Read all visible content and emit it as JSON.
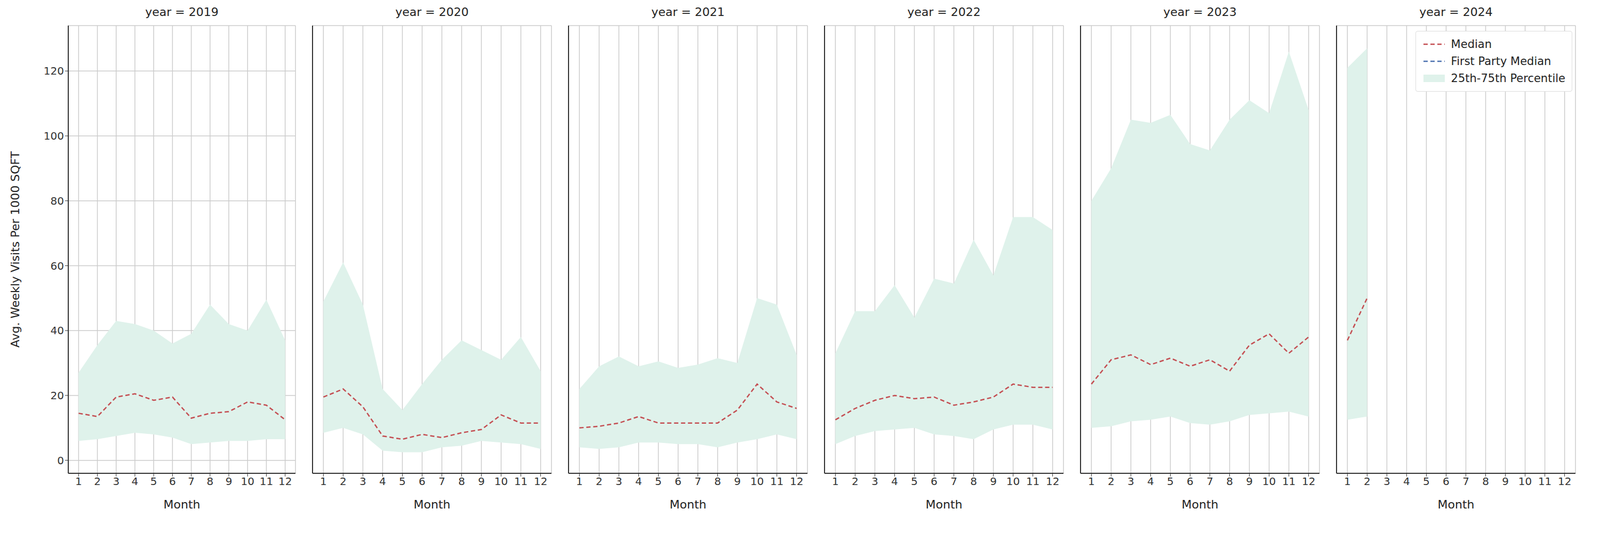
{
  "chart_data": [
    {
      "type": "line",
      "title": "year = 2019",
      "x_label": "Month",
      "y_label": "Avg. Weekly Visits Per 1000 SQFT",
      "x": [
        1,
        2,
        3,
        4,
        5,
        6,
        7,
        8,
        9,
        10,
        11,
        12
      ],
      "xlim": [
        0.45,
        12.55
      ],
      "xticks": [
        1,
        2,
        3,
        4,
        5,
        6,
        7,
        8,
        9,
        10,
        11,
        12
      ],
      "ylim": [
        -4,
        134
      ],
      "yticks": [
        0,
        20,
        40,
        60,
        80,
        100,
        120
      ],
      "grid": true,
      "series": [
        {
          "name": "Median",
          "type": "line",
          "color": "#c44e52",
          "line_style": "dashed",
          "values": [
            14.5,
            13.5,
            19.5,
            20.5,
            18.5,
            19.5,
            13,
            14.5,
            15,
            18,
            17,
            12.5
          ]
        },
        {
          "name": "First Party Median",
          "type": "line",
          "color": "#4c72b0",
          "line_style": "dashed",
          "values": [
            null,
            null,
            null,
            null,
            null,
            null,
            null,
            null,
            null,
            null,
            null,
            null
          ]
        },
        {
          "name": "25th-75th Percentile",
          "type": "band",
          "color": "#dff2eb",
          "lower": [
            6,
            6.5,
            7.5,
            8.5,
            8,
            7,
            5,
            5.5,
            6,
            6,
            6.5,
            6.5
          ],
          "upper": [
            27,
            35.5,
            43,
            42,
            40,
            36,
            39,
            48,
            42,
            40,
            49.5,
            37
          ]
        }
      ]
    },
    {
      "type": "line",
      "title": "year = 2020",
      "x_label": "Month",
      "tick_labels": "x",
      "x": [
        1,
        2,
        3,
        4,
        5,
        6,
        7,
        8,
        9,
        10,
        11,
        12
      ],
      "xlim": [
        0.45,
        12.55
      ],
      "xticks": [
        1,
        2,
        3,
        4,
        5,
        6,
        7,
        8,
        9,
        10,
        11,
        12
      ],
      "ylim": [
        -4,
        134
      ],
      "yticks": [
        0,
        20,
        40,
        60,
        80,
        100,
        120
      ],
      "grid": true,
      "series": [
        {
          "name": "Median",
          "type": "line",
          "color": "#c44e52",
          "line_style": "dashed",
          "values": [
            19.5,
            22,
            16.5,
            7.5,
            6.5,
            8,
            7,
            8.5,
            9.5,
            14,
            11.5,
            11.5
          ]
        },
        {
          "name": "First Party Median",
          "type": "line",
          "color": "#4c72b0",
          "line_style": "dashed",
          "values": [
            null,
            null,
            null,
            null,
            null,
            null,
            null,
            null,
            null,
            null,
            null,
            null
          ]
        },
        {
          "name": "25th-75th Percentile",
          "type": "band",
          "color": "#dff2eb",
          "lower": [
            8.5,
            10,
            8,
            3,
            2.5,
            2.5,
            4,
            4.5,
            6,
            5.5,
            5,
            3.5
          ],
          "upper": [
            49,
            61,
            48,
            22,
            15.5,
            23.5,
            31,
            37,
            34,
            31,
            38,
            27.5
          ]
        }
      ]
    },
    {
      "type": "line",
      "title": "year = 2021",
      "x_label": "Month",
      "tick_labels": "x",
      "x": [
        1,
        2,
        3,
        4,
        5,
        6,
        7,
        8,
        9,
        10,
        11,
        12
      ],
      "xlim": [
        0.45,
        12.55
      ],
      "xticks": [
        1,
        2,
        3,
        4,
        5,
        6,
        7,
        8,
        9,
        10,
        11,
        12
      ],
      "ylim": [
        -4,
        134
      ],
      "yticks": [
        0,
        20,
        40,
        60,
        80,
        100,
        120
      ],
      "grid": true,
      "series": [
        {
          "name": "Median",
          "type": "line",
          "color": "#c44e52",
          "line_style": "dashed",
          "values": [
            10,
            10.5,
            11.5,
            13.5,
            11.5,
            11.5,
            11.5,
            11.5,
            15.5,
            23.5,
            18,
            16
          ]
        },
        {
          "name": "First Party Median",
          "type": "line",
          "color": "#4c72b0",
          "line_style": "dashed",
          "values": [
            null,
            null,
            null,
            null,
            null,
            null,
            null,
            null,
            null,
            null,
            null,
            null
          ]
        },
        {
          "name": "25th-75th Percentile",
          "type": "band",
          "color": "#dff2eb",
          "lower": [
            4,
            3.5,
            4,
            5.5,
            5.5,
            5,
            5,
            4,
            5.5,
            6.5,
            8,
            6.5
          ],
          "upper": [
            22,
            29,
            32,
            29,
            30.5,
            28.5,
            29.5,
            31.5,
            30,
            50,
            48,
            32.5
          ]
        }
      ]
    },
    {
      "type": "line",
      "title": "year = 2022",
      "x_label": "Month",
      "tick_labels": "x",
      "x": [
        1,
        2,
        3,
        4,
        5,
        6,
        7,
        8,
        9,
        10,
        11,
        12
      ],
      "xlim": [
        0.45,
        12.55
      ],
      "xticks": [
        1,
        2,
        3,
        4,
        5,
        6,
        7,
        8,
        9,
        10,
        11,
        12
      ],
      "ylim": [
        -4,
        134
      ],
      "yticks": [
        0,
        20,
        40,
        60,
        80,
        100,
        120
      ],
      "grid": true,
      "series": [
        {
          "name": "Median",
          "type": "line",
          "color": "#c44e52",
          "line_style": "dashed",
          "values": [
            12.5,
            16,
            18.5,
            20,
            19,
            19.5,
            17,
            18,
            19.5,
            23.5,
            22.5,
            22.5
          ]
        },
        {
          "name": "First Party Median",
          "type": "line",
          "color": "#4c72b0",
          "line_style": "dashed",
          "values": [
            null,
            null,
            null,
            null,
            null,
            null,
            null,
            null,
            null,
            null,
            null,
            null
          ]
        },
        {
          "name": "25th-75th Percentile",
          "type": "band",
          "color": "#dff2eb",
          "lower": [
            5,
            7.5,
            9,
            9.5,
            10,
            8,
            7.5,
            6.5,
            9.5,
            11,
            11,
            9.5
          ],
          "upper": [
            33,
            46,
            46,
            54,
            44,
            56,
            54.5,
            68,
            57,
            75,
            75,
            71
          ]
        }
      ]
    },
    {
      "type": "line",
      "title": "year = 2023",
      "x_label": "Month",
      "tick_labels": "x",
      "x": [
        1,
        2,
        3,
        4,
        5,
        6,
        7,
        8,
        9,
        10,
        11,
        12
      ],
      "xlim": [
        0.45,
        12.55
      ],
      "xticks": [
        1,
        2,
        3,
        4,
        5,
        6,
        7,
        8,
        9,
        10,
        11,
        12
      ],
      "ylim": [
        -4,
        134
      ],
      "yticks": [
        0,
        20,
        40,
        60,
        80,
        100,
        120
      ],
      "grid": true,
      "series": [
        {
          "name": "Median",
          "type": "line",
          "color": "#c44e52",
          "line_style": "dashed",
          "values": [
            23.5,
            31,
            32.5,
            29.5,
            31.5,
            29,
            31,
            27.5,
            35.5,
            39,
            33,
            38
          ]
        },
        {
          "name": "First Party Median",
          "type": "line",
          "color": "#4c72b0",
          "line_style": "dashed",
          "values": [
            null,
            null,
            null,
            null,
            null,
            null,
            null,
            null,
            null,
            null,
            null,
            null
          ]
        },
        {
          "name": "25th-75th Percentile",
          "type": "band",
          "color": "#dff2eb",
          "lower": [
            10,
            10.5,
            12,
            12.5,
            13.5,
            11.5,
            11,
            12,
            14,
            14.5,
            15,
            13.5
          ],
          "upper": [
            80,
            90,
            105,
            104,
            106.5,
            97.5,
            95.5,
            105,
            111,
            107,
            126,
            108
          ]
        }
      ]
    },
    {
      "type": "line",
      "title": "year = 2024",
      "x_label": "Month",
      "tick_labels": "x",
      "legend": "upper right",
      "x": [
        1,
        2,
        3,
        4,
        5,
        6,
        7,
        8,
        9,
        10,
        11,
        12
      ],
      "xlim": [
        0.45,
        12.55
      ],
      "xticks": [
        1,
        2,
        3,
        4,
        5,
        6,
        7,
        8,
        9,
        10,
        11,
        12
      ],
      "ylim": [
        -4,
        134
      ],
      "yticks": [
        0,
        20,
        40,
        60,
        80,
        100,
        120
      ],
      "grid": true,
      "series": [
        {
          "name": "Median",
          "type": "line",
          "color": "#c44e52",
          "line_style": "dashed",
          "values": [
            37,
            50,
            null,
            null,
            null,
            null,
            null,
            null,
            null,
            null,
            null,
            null
          ]
        },
        {
          "name": "First Party Median",
          "type": "line",
          "color": "#4c72b0",
          "line_style": "dashed",
          "values": [
            null,
            null,
            null,
            null,
            null,
            null,
            null,
            null,
            null,
            null,
            null,
            null
          ]
        },
        {
          "name": "25th-75th Percentile",
          "type": "band",
          "color": "#dff2eb",
          "lower": [
            12.5,
            13.5,
            null,
            null,
            null,
            null,
            null,
            null,
            null,
            null,
            null,
            null
          ],
          "upper": [
            121,
            127,
            null,
            null,
            null,
            null,
            null,
            null,
            null,
            null,
            null,
            null
          ]
        }
      ]
    }
  ]
}
